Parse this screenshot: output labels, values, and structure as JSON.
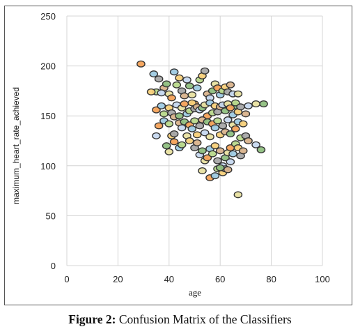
{
  "caption": {
    "label": "Figure 2:",
    "text": "Confusion Matrix of the Classifiers"
  },
  "chart_data": {
    "type": "scatter",
    "title": "",
    "xlabel": "age",
    "ylabel": "maximum_heart_rate_achieved",
    "xlim": [
      0,
      100
    ],
    "ylim": [
      0,
      250
    ],
    "xticks": [
      0,
      20,
      40,
      60,
      80,
      100
    ],
    "yticks": [
      0,
      50,
      100,
      150,
      200,
      250
    ],
    "grid": true,
    "marker_colors": [
      "#f4a259",
      "#9ecae1",
      "#b8d88b",
      "#f7d07a",
      "#a8a8a8",
      "#d9b38c",
      "#c6d8ef",
      "#8fbf7f",
      "#e8e0a0"
    ],
    "marker_edge": "#333333",
    "points": [
      [
        29,
        202
      ],
      [
        34,
        192
      ],
      [
        35,
        174
      ],
      [
        33,
        174
      ],
      [
        36,
        187
      ],
      [
        38,
        178
      ],
      [
        37,
        173
      ],
      [
        39,
        182
      ],
      [
        40,
        172
      ],
      [
        41,
        168
      ],
      [
        42,
        194
      ],
      [
        43,
        181
      ],
      [
        44,
        188
      ],
      [
        45,
        175
      ],
      [
        46,
        170
      ],
      [
        47,
        186
      ],
      [
        48,
        180
      ],
      [
        49,
        171
      ],
      [
        50,
        162
      ],
      [
        51,
        178
      ],
      [
        52,
        186
      ],
      [
        53,
        190
      ],
      [
        54,
        195
      ],
      [
        55,
        172
      ],
      [
        56,
        168
      ],
      [
        57,
        175
      ],
      [
        58,
        182
      ],
      [
        59,
        178
      ],
      [
        60,
        171
      ],
      [
        61,
        175
      ],
      [
        62,
        179
      ],
      [
        63,
        174
      ],
      [
        64,
        181
      ],
      [
        65,
        172
      ],
      [
        66,
        160
      ],
      [
        67,
        172
      ],
      [
        35,
        156
      ],
      [
        37,
        160
      ],
      [
        38,
        152
      ],
      [
        40,
        158
      ],
      [
        41,
        153
      ],
      [
        42,
        149
      ],
      [
        43,
        161
      ],
      [
        44,
        150
      ],
      [
        45,
        158
      ],
      [
        46,
        162
      ],
      [
        47,
        152
      ],
      [
        48,
        155
      ],
      [
        49,
        163
      ],
      [
        50,
        157
      ],
      [
        51,
        159
      ],
      [
        52,
        156
      ],
      [
        53,
        158
      ],
      [
        54,
        161
      ],
      [
        55,
        150
      ],
      [
        56,
        163
      ],
      [
        57,
        153
      ],
      [
        58,
        160
      ],
      [
        59,
        154
      ],
      [
        60,
        159
      ],
      [
        61,
        161
      ],
      [
        62,
        155
      ],
      [
        63,
        162
      ],
      [
        64,
        158
      ],
      [
        65,
        151
      ],
      [
        66,
        163
      ],
      [
        67,
        154
      ],
      [
        68,
        159
      ],
      [
        70,
        152
      ],
      [
        71,
        160
      ],
      [
        77,
        162
      ],
      [
        74,
        162
      ],
      [
        36,
        140
      ],
      [
        38,
        145
      ],
      [
        40,
        142
      ],
      [
        41,
        130
      ],
      [
        42,
        132
      ],
      [
        44,
        143
      ],
      [
        45,
        138
      ],
      [
        46,
        144
      ],
      [
        47,
        130
      ],
      [
        48,
        141
      ],
      [
        49,
        137
      ],
      [
        50,
        145
      ],
      [
        51,
        131
      ],
      [
        52,
        140
      ],
      [
        53,
        146
      ],
      [
        54,
        133
      ],
      [
        55,
        144
      ],
      [
        56,
        129
      ],
      [
        57,
        142
      ],
      [
        58,
        138
      ],
      [
        59,
        145
      ],
      [
        60,
        131
      ],
      [
        61,
        140
      ],
      [
        62,
        134
      ],
      [
        63,
        146
      ],
      [
        64,
        132
      ],
      [
        65,
        141
      ],
      [
        66,
        137
      ],
      [
        67,
        144
      ],
      [
        68,
        128
      ],
      [
        69,
        142
      ],
      [
        70,
        130
      ],
      [
        71,
        125
      ],
      [
        35,
        130
      ],
      [
        39,
        120
      ],
      [
        40,
        114
      ],
      [
        42,
        124
      ],
      [
        44,
        118
      ],
      [
        45,
        121
      ],
      [
        48,
        125
      ],
      [
        50,
        118
      ],
      [
        51,
        123
      ],
      [
        52,
        111
      ],
      [
        53,
        115
      ],
      [
        54,
        105
      ],
      [
        55,
        108
      ],
      [
        56,
        117
      ],
      [
        57,
        112
      ],
      [
        58,
        120
      ],
      [
        59,
        105
      ],
      [
        60,
        115
      ],
      [
        61,
        100
      ],
      [
        62,
        108
      ],
      [
        63,
        113
      ],
      [
        64,
        118
      ],
      [
        65,
        112
      ],
      [
        66,
        122
      ],
      [
        67,
        118
      ],
      [
        68,
        110
      ],
      [
        69,
        115
      ],
      [
        74,
        121
      ],
      [
        76,
        116
      ],
      [
        53,
        95
      ],
      [
        56,
        88
      ],
      [
        58,
        90
      ],
      [
        59,
        97
      ],
      [
        61,
        93
      ],
      [
        62,
        97
      ],
      [
        63,
        96
      ],
      [
        64,
        104
      ],
      [
        60,
        98
      ],
      [
        67,
        71
      ]
    ]
  }
}
